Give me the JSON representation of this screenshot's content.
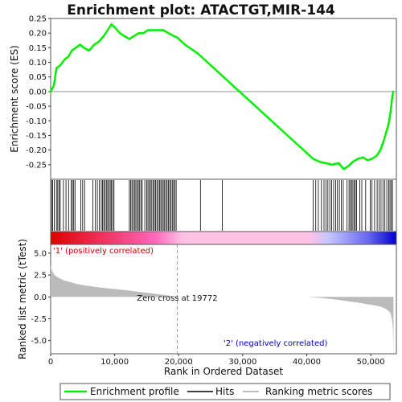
{
  "chart_data": {
    "type": "line",
    "title": "Enrichment plot: ATACTGT,MIR-144",
    "top_panel": {
      "ylabel": "Enrichment score (ES)",
      "ylim": [
        -0.3,
        0.25
      ],
      "yticks": [
        "0.25",
        "0.20",
        "0.15",
        "0.10",
        "0.05",
        "0.00",
        "-0.05",
        "-0.10",
        "-0.15",
        "-0.20",
        "-0.25"
      ],
      "series_color": "#00ee00",
      "es_profile": {
        "x": [
          0,
          500,
          900,
          1500,
          2200,
          2800,
          3300,
          3900,
          4600,
          5200,
          6000,
          6800,
          7500,
          8300,
          8900,
          9500,
          10000,
          10800,
          11500,
          12300,
          13000,
          13800,
          14500,
          15200,
          16000,
          16800,
          17600,
          18400,
          19200,
          19772,
          21000,
          23000,
          25000,
          27000,
          29000,
          31000,
          33000,
          35000,
          37000,
          39000,
          41000,
          42000,
          43000,
          44000,
          45000,
          45800,
          46500,
          47200,
          48000,
          48800,
          49500,
          50200,
          50900,
          51500,
          52000,
          52400,
          52800,
          53100,
          53300,
          53500
        ],
        "y": [
          0.0,
          0.02,
          0.08,
          0.09,
          0.11,
          0.12,
          0.14,
          0.15,
          0.16,
          0.15,
          0.14,
          0.16,
          0.17,
          0.19,
          0.21,
          0.23,
          0.22,
          0.2,
          0.19,
          0.18,
          0.19,
          0.2,
          0.2,
          0.21,
          0.21,
          0.21,
          0.21,
          0.2,
          0.19,
          0.185,
          0.16,
          0.13,
          0.09,
          0.05,
          0.01,
          -0.03,
          -0.07,
          -0.11,
          -0.15,
          -0.19,
          -0.23,
          -0.24,
          -0.245,
          -0.25,
          -0.245,
          -0.265,
          -0.255,
          -0.24,
          -0.23,
          -0.225,
          -0.235,
          -0.23,
          -0.22,
          -0.2,
          -0.17,
          -0.14,
          -0.11,
          -0.07,
          -0.03,
          0.0
        ]
      }
    },
    "hits_panel": {
      "hit_positions": [
        150,
        300,
        550,
        900,
        1100,
        1300,
        1500,
        2000,
        2400,
        2800,
        3200,
        3400,
        3600,
        3800,
        4700,
        5000,
        5300,
        6600,
        7000,
        7300,
        7600,
        7900,
        8100,
        8300,
        8500,
        8700,
        8900,
        9100,
        9300,
        9500,
        9700,
        9900,
        12300,
        12500,
        12700,
        12900,
        13100,
        13300,
        13500,
        13700,
        13900,
        14100,
        14300,
        14700,
        15000,
        15200,
        15400,
        15600,
        15800,
        16000,
        16200,
        16400,
        16600,
        16800,
        17000,
        17200,
        17400,
        17600,
        17800,
        18000,
        18200,
        18400,
        18600,
        18800,
        19000,
        19200,
        19400,
        19600,
        23400,
        26800,
        41000,
        41400,
        41800,
        42300,
        42700,
        43000,
        43300,
        43600,
        43900,
        44200,
        44500,
        44800,
        45100,
        45400,
        45700,
        46300,
        46600,
        46800,
        47000,
        47200,
        47400,
        47600,
        47800,
        48300,
        48600,
        49200,
        49900,
        50200,
        50600,
        51000,
        51300,
        51600,
        51900,
        52200,
        52500,
        52800,
        53000,
        53200,
        53400
      ],
      "gradient_colors": [
        "#dd0000",
        "#ff66bb",
        "#ffc0e6",
        "#c8c8ff",
        "#0000cc"
      ]
    },
    "bottom_panel": {
      "ylabel": "Ranked list metric (tTest)",
      "xlabel": "Rank in Ordered Dataset",
      "ylim": [
        -6.5,
        6.0
      ],
      "yticks": [
        "5.0",
        "2.5",
        "0.0",
        "-2.5",
        "-5.0"
      ],
      "xlim": [
        0,
        54000
      ],
      "xticks": [
        "0",
        "10,000",
        "20,000",
        "30,000",
        "40,000",
        "50,000"
      ],
      "metric_profile": {
        "x": [
          0,
          200,
          600,
          1200,
          2000,
          3000,
          4000,
          5000,
          6000,
          8000,
          10000,
          12000,
          14000,
          16000,
          18000,
          19772,
          22000,
          30000,
          40000,
          42000,
          44000,
          46000,
          48000,
          49500,
          50500,
          51500,
          52300,
          52800,
          53100,
          53300,
          53450,
          53550
        ],
        "y": [
          3.6,
          3.0,
          2.5,
          2.2,
          1.9,
          1.7,
          1.5,
          1.35,
          1.25,
          1.05,
          0.9,
          0.75,
          0.55,
          0.38,
          0.2,
          0.0,
          0.0,
          0.0,
          0.0,
          -0.1,
          -0.25,
          -0.45,
          -0.65,
          -0.85,
          -0.95,
          -1.1,
          -1.35,
          -1.6,
          -1.9,
          -2.5,
          -3.5,
          -6.2
        ]
      },
      "zero_cross_label": "Zero cross at 19772",
      "zero_cross_x": 19772,
      "pos_label": "'1' (positively correlated)",
      "neg_label": "'2' (negatively correlated)"
    },
    "legend": {
      "placement": "bottom",
      "items": [
        {
          "label": "Enrichment profile",
          "color": "#00ee00"
        },
        {
          "label": "Hits",
          "color": "#000000"
        },
        {
          "label": "Ranking metric scores",
          "color": "#bbbbbb"
        }
      ]
    }
  }
}
